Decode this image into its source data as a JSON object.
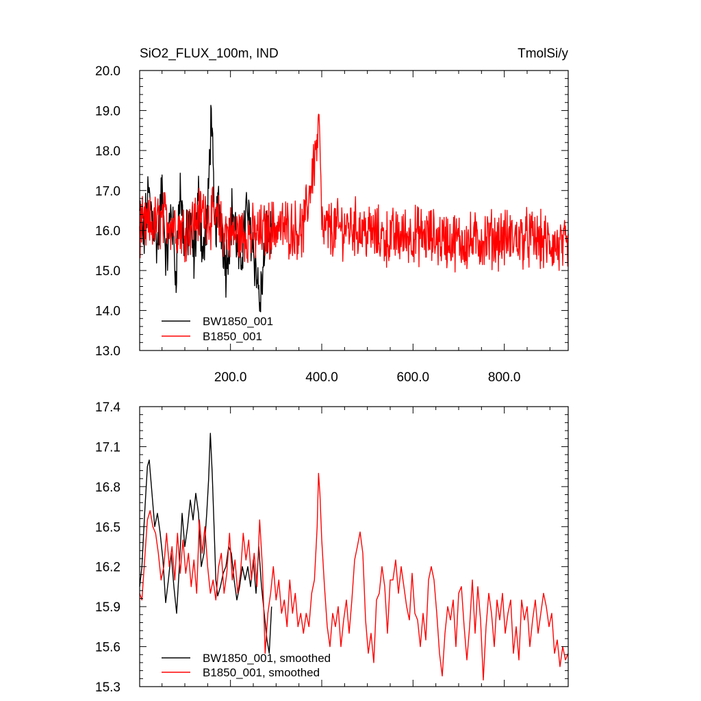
{
  "chart_data": [
    {
      "type": "line",
      "title_left": "SiO2_FLUX_100m, IND",
      "title_right": "TmolSi/y",
      "xlim": [
        1,
        940
      ],
      "ylim": [
        13.0,
        20.0
      ],
      "y_ticks": [
        "13.0",
        "14.0",
        "15.0",
        "16.0",
        "17.0",
        "18.0",
        "19.0",
        "20.0"
      ],
      "x_ticks": [
        "200.0",
        "400.0",
        "600.0",
        "800.0"
      ],
      "legend_placement": "bottom-left",
      "series": [
        {
          "name": "BW1850_001",
          "color": "#000000",
          "x_range": [
            1,
            290
          ],
          "approx_values": [
            [
              1,
              16.4
            ],
            [
              10,
              15.8
            ],
            [
              20,
              16.9
            ],
            [
              30,
              16.3
            ],
            [
              40,
              15.6
            ],
            [
              50,
              17.0
            ],
            [
              60,
              15.2
            ],
            [
              70,
              16.6
            ],
            [
              80,
              14.9
            ],
            [
              90,
              17.1
            ],
            [
              100,
              15.5
            ],
            [
              110,
              16.2
            ],
            [
              120,
              15.3
            ],
            [
              130,
              16.8
            ],
            [
              140,
              15.4
            ],
            [
              150,
              16.3
            ],
            [
              158,
              19.05
            ],
            [
              165,
              15.9
            ],
            [
              175,
              16.7
            ],
            [
              190,
              15.1
            ],
            [
              205,
              16.6
            ],
            [
              220,
              15.0
            ],
            [
              235,
              16.5
            ],
            [
              250,
              15.6
            ],
            [
              265,
              14.2
            ],
            [
              280,
              16.0
            ],
            [
              290,
              15.8
            ]
          ]
        },
        {
          "name": "B1850_001",
          "color": "#ff0000",
          "x_range": [
            1,
            940
          ],
          "approx_values": [
            [
              1,
              16.0
            ],
            [
              60,
              16.3
            ],
            [
              100,
              16.0
            ],
            [
              140,
              16.5
            ],
            [
              200,
              15.9
            ],
            [
              260,
              15.9
            ],
            [
              300,
              16.1
            ],
            [
              360,
              16.0
            ],
            [
              395,
              18.6
            ],
            [
              400,
              16.0
            ],
            [
              470,
              16.1
            ],
            [
              540,
              15.8
            ],
            [
              600,
              15.9
            ],
            [
              660,
              15.8
            ],
            [
              720,
              15.7
            ],
            [
              770,
              15.8
            ],
            [
              800,
              15.8
            ],
            [
              860,
              15.8
            ],
            [
              940,
              15.5
            ]
          ]
        }
      ]
    },
    {
      "type": "line",
      "xlim": [
        1,
        940
      ],
      "ylim": [
        15.3,
        17.4
      ],
      "y_ticks": [
        "15.3",
        "15.6",
        "15.9",
        "16.2",
        "16.5",
        "16.8",
        "17.1",
        "17.4"
      ],
      "legend_placement": "bottom-left",
      "series": [
        {
          "name": "BW1850_001, smoothed",
          "color": "#000000",
          "values": [
            [
              1,
              16.05
            ],
            [
              6,
              16.2
            ],
            [
              12,
              16.6
            ],
            [
              18,
              16.95
            ],
            [
              22,
              17.0
            ],
            [
              28,
              16.75
            ],
            [
              34,
              16.5
            ],
            [
              40,
              16.6
            ],
            [
              46,
              16.45
            ],
            [
              52,
              16.25
            ],
            [
              58,
              15.93
            ],
            [
              64,
              16.1
            ],
            [
              70,
              16.3
            ],
            [
              76,
              16.05
            ],
            [
              82,
              15.85
            ],
            [
              88,
              16.2
            ],
            [
              94,
              16.6
            ],
            [
              100,
              16.35
            ],
            [
              106,
              16.5
            ],
            [
              112,
              16.7
            ],
            [
              118,
              16.55
            ],
            [
              124,
              16.75
            ],
            [
              130,
              16.6
            ],
            [
              136,
              16.2
            ],
            [
              142,
              16.3
            ],
            [
              148,
              16.6
            ],
            [
              152,
              16.85
            ],
            [
              156,
              17.2
            ],
            [
              160,
              16.9
            ],
            [
              164,
              16.5
            ],
            [
              168,
              16.1
            ],
            [
              172,
              15.98
            ],
            [
              178,
              16.05
            ],
            [
              184,
              16.15
            ],
            [
              190,
              16.2
            ],
            [
              196,
              16.35
            ],
            [
              202,
              16.3
            ],
            [
              208,
              16.1
            ],
            [
              214,
              15.95
            ],
            [
              220,
              16.05
            ],
            [
              226,
              16.2
            ],
            [
              232,
              16.1
            ],
            [
              238,
              16.2
            ],
            [
              244,
              16.05
            ],
            [
              250,
              16.25
            ],
            [
              256,
              16.0
            ],
            [
              262,
              16.35
            ],
            [
              268,
              16.05
            ],
            [
              274,
              15.85
            ],
            [
              280,
              15.65
            ],
            [
              285,
              15.55
            ],
            [
              290,
              15.9
            ]
          ]
        },
        {
          "name": "B1850_001, smoothed",
          "color": "#ff0000",
          "values": [
            [
              1,
              16.0
            ],
            [
              6,
              15.95
            ],
            [
              12,
              16.25
            ],
            [
              18,
              16.55
            ],
            [
              24,
              16.62
            ],
            [
              30,
              16.5
            ],
            [
              36,
              16.45
            ],
            [
              42,
              16.3
            ],
            [
              48,
              16.1
            ],
            [
              54,
              16.2
            ],
            [
              60,
              16.45
            ],
            [
              66,
              16.2
            ],
            [
              72,
              16.35
            ],
            [
              78,
              16.1
            ],
            [
              84,
              16.45
            ],
            [
              90,
              16.15
            ],
            [
              96,
              16.4
            ],
            [
              102,
              16.15
            ],
            [
              108,
              16.3
            ],
            [
              114,
              16.05
            ],
            [
              120,
              16.25
            ],
            [
              126,
              16.0
            ],
            [
              132,
              16.55
            ],
            [
              138,
              16.3
            ],
            [
              144,
              16.5
            ],
            [
              150,
              16.2
            ],
            [
              156,
              16.0
            ],
            [
              162,
              16.1
            ],
            [
              168,
              15.95
            ],
            [
              174,
              16.2
            ],
            [
              180,
              16.3
            ],
            [
              186,
              16.0
            ],
            [
              192,
              16.15
            ],
            [
              198,
              16.45
            ],
            [
              204,
              16.1
            ],
            [
              210,
              16.25
            ],
            [
              216,
              16.0
            ],
            [
              222,
              16.15
            ],
            [
              228,
              16.45
            ],
            [
              234,
              16.25
            ],
            [
              240,
              16.4
            ],
            [
              246,
              16.1
            ],
            [
              252,
              16.3
            ],
            [
              258,
              16.05
            ],
            [
              264,
              16.55
            ],
            [
              270,
              16.2
            ],
            [
              276,
              15.55
            ],
            [
              282,
              15.85
            ],
            [
              288,
              16.0
            ],
            [
              294,
              16.2
            ],
            [
              300,
              15.95
            ],
            [
              306,
              16.1
            ],
            [
              312,
              15.85
            ],
            [
              318,
              15.95
            ],
            [
              324,
              15.75
            ],
            [
              330,
              16.1
            ],
            [
              336,
              15.85
            ],
            [
              342,
              16.0
            ],
            [
              348,
              15.75
            ],
            [
              354,
              15.85
            ],
            [
              360,
              15.7
            ],
            [
              366,
              15.85
            ],
            [
              372,
              15.75
            ],
            [
              378,
              16.0
            ],
            [
              384,
              16.1
            ],
            [
              390,
              16.5
            ],
            [
              393,
              16.9
            ],
            [
              396,
              16.75
            ],
            [
              400,
              16.4
            ],
            [
              406,
              16.05
            ],
            [
              412,
              15.75
            ],
            [
              418,
              15.6
            ],
            [
              424,
              15.85
            ],
            [
              430,
              15.75
            ],
            [
              436,
              15.9
            ],
            [
              442,
              15.6
            ],
            [
              448,
              15.8
            ],
            [
              454,
              15.95
            ],
            [
              460,
              15.7
            ],
            [
              466,
              15.95
            ],
            [
              472,
              16.25
            ],
            [
              478,
              16.35
            ],
            [
              484,
              16.46
            ],
            [
              490,
              16.3
            ],
            [
              496,
              15.8
            ],
            [
              502,
              15.55
            ],
            [
              508,
              15.7
            ],
            [
              514,
              15.48
            ],
            [
              520,
              15.95
            ],
            [
              526,
              16.0
            ],
            [
              532,
              16.2
            ],
            [
              538,
              16.05
            ],
            [
              544,
              15.7
            ],
            [
              550,
              16.1
            ],
            [
              556,
              16.1
            ],
            [
              562,
              16.25
            ],
            [
              568,
              16.0
            ],
            [
              574,
              16.2
            ],
            [
              580,
              16.05
            ],
            [
              586,
              15.9
            ],
            [
              592,
              15.8
            ],
            [
              598,
              16.15
            ],
            [
              604,
              15.85
            ],
            [
              610,
              15.8
            ],
            [
              616,
              15.6
            ],
            [
              622,
              15.85
            ],
            [
              628,
              15.65
            ],
            [
              634,
              16.1
            ],
            [
              640,
              16.2
            ],
            [
              646,
              16.1
            ],
            [
              652,
              15.85
            ],
            [
              658,
              15.55
            ],
            [
              664,
              15.38
            ],
            [
              670,
              15.7
            ],
            [
              676,
              15.9
            ],
            [
              682,
              15.8
            ],
            [
              688,
              15.95
            ],
            [
              694,
              15.6
            ],
            [
              700,
              16.0
            ],
            [
              706,
              16.05
            ],
            [
              712,
              15.75
            ],
            [
              718,
              15.5
            ],
            [
              724,
              15.75
            ],
            [
              730,
              16.1
            ],
            [
              736,
              15.7
            ],
            [
              742,
              16.05
            ],
            [
              748,
              15.8
            ],
            [
              754,
              15.35
            ],
            [
              760,
              15.75
            ],
            [
              766,
              16.0
            ],
            [
              772,
              15.85
            ],
            [
              778,
              15.6
            ],
            [
              784,
              15.95
            ],
            [
              790,
              15.8
            ],
            [
              796,
              16.0
            ],
            [
              802,
              15.7
            ],
            [
              808,
              15.85
            ],
            [
              814,
              15.95
            ],
            [
              820,
              15.55
            ],
            [
              826,
              15.75
            ],
            [
              832,
              15.5
            ],
            [
              838,
              15.95
            ],
            [
              844,
              15.8
            ],
            [
              850,
              15.9
            ],
            [
              856,
              15.6
            ],
            [
              862,
              15.8
            ],
            [
              868,
              15.95
            ],
            [
              874,
              15.7
            ],
            [
              880,
              15.85
            ],
            [
              886,
              16.0
            ],
            [
              892,
              15.9
            ],
            [
              898,
              15.75
            ],
            [
              904,
              15.85
            ],
            [
              910,
              15.55
            ],
            [
              916,
              15.65
            ],
            [
              922,
              15.45
            ],
            [
              928,
              15.6
            ],
            [
              934,
              15.5
            ],
            [
              940,
              15.55
            ]
          ]
        }
      ]
    }
  ]
}
